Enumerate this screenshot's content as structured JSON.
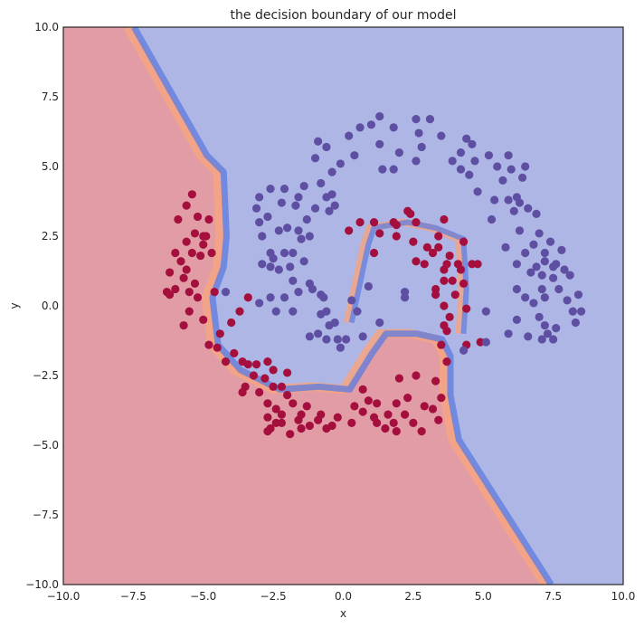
{
  "chart_data": {
    "type": "scatter",
    "title": "the decision boundary of our model",
    "xlabel": "x",
    "ylabel": "y",
    "xlim": [
      -10.0,
      10.0
    ],
    "ylim": [
      -10.0,
      10.0
    ],
    "x_ticks": [
      "−10.0",
      "−7.5",
      "−5.0",
      "−2.5",
      "0.0",
      "2.5",
      "5.0",
      "7.5",
      "10.0"
    ],
    "y_ticks": [
      "−10.0",
      "−7.5",
      "−5.0",
      "−2.5",
      "0.0",
      "2.5",
      "5.0",
      "7.5",
      "10.0"
    ],
    "x_tick_values": [
      -10,
      -7.5,
      -5,
      -2.5,
      0,
      2.5,
      5,
      7.5,
      10
    ],
    "y_tick_values": [
      -10,
      -7.5,
      -5,
      -2.5,
      0,
      2.5,
      5,
      7.5,
      10
    ],
    "grid": false,
    "legend": "none",
    "colors": {
      "region_class_0": "#e19ca6",
      "region_class_1": "#aeb6e5",
      "boundary_warm": "#f4a582",
      "boundary_cool": "#5b7be0",
      "class_0_points": "#a50f3d",
      "class_1_points": "#5e4fa2"
    },
    "background_contour": {
      "type": "filled-contour",
      "cmap": "coolwarm",
      "boundary_path": [
        [
          -7.6,
          10.0
        ],
        [
          -5.0,
          5.4
        ],
        [
          -4.4,
          4.8
        ],
        [
          -4.3,
          2.5
        ],
        [
          -4.4,
          1.4
        ],
        [
          -4.8,
          0.3
        ],
        [
          -4.6,
          -1.4
        ],
        [
          -3.8,
          -2.3
        ],
        [
          -2.4,
          -3.0
        ],
        [
          -1.0,
          -2.9
        ],
        [
          0.1,
          -3.0
        ],
        [
          0.9,
          -1.7
        ],
        [
          1.4,
          -1.0
        ],
        [
          2.5,
          -1.0
        ],
        [
          3.4,
          -1.2
        ],
        [
          3.7,
          -1.8
        ],
        [
          3.7,
          -3.2
        ],
        [
          4.0,
          -4.8
        ],
        [
          7.3,
          -10.0
        ]
      ],
      "inner_boundary_path": [
        [
          0.2,
          -0.6
        ],
        [
          0.8,
          2.2
        ],
        [
          1.0,
          2.8
        ],
        [
          2.2,
          3.0
        ],
        [
          3.2,
          2.8
        ],
        [
          4.2,
          2.4
        ],
        [
          4.3,
          0.6
        ],
        [
          4.2,
          -1.0
        ]
      ]
    },
    "series": [
      {
        "class": 0,
        "points": [
          [
            -5.4,
            4.0
          ],
          [
            -5.6,
            3.6
          ],
          [
            -5.2,
            3.2
          ],
          [
            -4.8,
            3.1
          ],
          [
            -5.9,
            3.1
          ],
          [
            -5.3,
            2.6
          ],
          [
            -4.9,
            2.5
          ],
          [
            -5.6,
            2.3
          ],
          [
            -5.0,
            2.2
          ],
          [
            -5.4,
            1.9
          ],
          [
            -6.0,
            1.9
          ],
          [
            -5.1,
            1.8
          ],
          [
            -4.7,
            1.9
          ],
          [
            -5.8,
            1.6
          ],
          [
            -6.2,
            1.2
          ],
          [
            -5.7,
            1.0
          ],
          [
            -5.3,
            0.8
          ],
          [
            -6.0,
            0.6
          ],
          [
            -5.5,
            0.5
          ],
          [
            -6.3,
            0.5
          ],
          [
            -5.2,
            0.3
          ],
          [
            -6.2,
            0.4
          ],
          [
            -5.5,
            -0.2
          ],
          [
            -5.0,
            -0.5
          ],
          [
            -5.7,
            -0.7
          ],
          [
            -3.7,
            -0.2
          ],
          [
            -4.0,
            -0.6
          ],
          [
            -4.4,
            -1.0
          ],
          [
            -4.8,
            -1.4
          ],
          [
            -4.5,
            -1.5
          ],
          [
            -3.9,
            -1.7
          ],
          [
            -4.2,
            -2.0
          ],
          [
            -3.6,
            -2.0
          ],
          [
            -3.4,
            -2.1
          ],
          [
            -3.1,
            -2.1
          ],
          [
            -2.7,
            -2.0
          ],
          [
            -3.2,
            -2.5
          ],
          [
            -2.8,
            -2.6
          ],
          [
            -2.5,
            -2.3
          ],
          [
            -2.0,
            -2.4
          ],
          [
            -3.5,
            -2.9
          ],
          [
            -2.5,
            -2.9
          ],
          [
            -2.2,
            -2.9
          ],
          [
            -3.0,
            -3.1
          ],
          [
            -2.0,
            -3.2
          ],
          [
            -2.7,
            -3.5
          ],
          [
            -3.6,
            -3.1
          ],
          [
            -1.8,
            -3.5
          ],
          [
            -1.3,
            -3.6
          ],
          [
            -2.4,
            -3.7
          ],
          [
            -2.2,
            -3.9
          ],
          [
            -1.5,
            -3.9
          ],
          [
            -0.8,
            -3.9
          ],
          [
            -2.7,
            -4.0
          ],
          [
            -2.4,
            -4.2
          ],
          [
            -1.6,
            -4.1
          ],
          [
            -0.2,
            -4.0
          ],
          [
            -0.9,
            -4.1
          ],
          [
            -0.4,
            -4.3
          ],
          [
            -2.7,
            -4.5
          ],
          [
            -2.6,
            -4.4
          ],
          [
            -1.9,
            -4.6
          ],
          [
            -1.2,
            -4.3
          ],
          [
            -0.6,
            -4.4
          ],
          [
            -1.5,
            -4.4
          ],
          [
            -2.2,
            -4.2
          ],
          [
            0.4,
            -3.6
          ],
          [
            0.9,
            -3.4
          ],
          [
            1.2,
            -3.5
          ],
          [
            0.7,
            -3.8
          ],
          [
            1.1,
            -4.0
          ],
          [
            1.9,
            -3.5
          ],
          [
            1.6,
            -3.9
          ],
          [
            2.2,
            -3.9
          ],
          [
            2.5,
            -4.2
          ],
          [
            2.9,
            -3.6
          ],
          [
            3.2,
            -3.7
          ],
          [
            3.4,
            -4.1
          ],
          [
            2.8,
            -4.5
          ],
          [
            1.8,
            -4.2
          ],
          [
            1.9,
            -4.5
          ],
          [
            1.5,
            -4.4
          ],
          [
            0.3,
            -4.2
          ],
          [
            3.3,
            -2.7
          ],
          [
            3.7,
            -2.0
          ],
          [
            2.6,
            -2.5
          ],
          [
            2.0,
            -2.6
          ],
          [
            2.3,
            -3.3
          ],
          [
            3.5,
            -3.3
          ],
          [
            1.2,
            -4.2
          ],
          [
            1.8,
            3.0
          ],
          [
            2.3,
            3.4
          ],
          [
            1.1,
            3.0
          ],
          [
            1.9,
            2.9
          ],
          [
            1.3,
            2.6
          ],
          [
            2.6,
            3.0
          ],
          [
            3.6,
            3.1
          ],
          [
            1.1,
            1.9
          ],
          [
            0.2,
            2.7
          ],
          [
            1.9,
            2.5
          ],
          [
            3.0,
            2.1
          ],
          [
            3.4,
            2.5
          ],
          [
            2.5,
            2.3
          ],
          [
            2.6,
            1.6
          ],
          [
            3.4,
            2.1
          ],
          [
            2.9,
            1.5
          ],
          [
            3.2,
            1.9
          ],
          [
            3.8,
            1.8
          ],
          [
            4.1,
            1.5
          ],
          [
            3.7,
            1.5
          ],
          [
            4.2,
            1.3
          ],
          [
            4.6,
            1.5
          ],
          [
            4.8,
            1.5
          ],
          [
            3.6,
            1.3
          ],
          [
            3.6,
            0.9
          ],
          [
            3.9,
            0.9
          ],
          [
            4.3,
            0.8
          ],
          [
            3.3,
            0.6
          ],
          [
            3.3,
            0.4
          ],
          [
            4.0,
            0.4
          ],
          [
            3.6,
            0.0
          ],
          [
            4.4,
            -0.1
          ],
          [
            3.8,
            -0.4
          ],
          [
            3.7,
            -0.9
          ],
          [
            3.6,
            -0.7
          ],
          [
            3.5,
            -1.4
          ],
          [
            4.4,
            -1.4
          ],
          [
            4.9,
            -1.3
          ],
          [
            2.4,
            3.3
          ],
          [
            -3.4,
            0.3
          ],
          [
            -5.0,
            2.5
          ],
          [
            -5.6,
            1.3
          ],
          [
            0.6,
            3.0
          ],
          [
            4.3,
            2.3
          ],
          [
            -4.6,
            0.5
          ],
          [
            0.7,
            -3.0
          ]
        ]
      },
      {
        "class": 1,
        "points": [
          [
            1.0,
            6.5
          ],
          [
            1.3,
            6.8
          ],
          [
            2.6,
            6.7
          ],
          [
            3.1,
            6.7
          ],
          [
            0.6,
            6.4
          ],
          [
            1.8,
            6.4
          ],
          [
            2.7,
            6.2
          ],
          [
            3.5,
            6.1
          ],
          [
            4.4,
            6.0
          ],
          [
            0.2,
            6.1
          ],
          [
            -0.9,
            5.9
          ],
          [
            -0.6,
            5.7
          ],
          [
            1.3,
            5.8
          ],
          [
            2.0,
            5.5
          ],
          [
            2.8,
            5.7
          ],
          [
            4.6,
            5.8
          ],
          [
            4.2,
            5.5
          ],
          [
            5.2,
            5.4
          ],
          [
            5.9,
            5.4
          ],
          [
            4.7,
            5.2
          ],
          [
            -1.0,
            5.3
          ],
          [
            0.4,
            5.4
          ],
          [
            -0.1,
            5.1
          ],
          [
            1.4,
            4.9
          ],
          [
            1.8,
            4.9
          ],
          [
            2.6,
            5.2
          ],
          [
            3.9,
            5.2
          ],
          [
            5.5,
            5.0
          ],
          [
            6.5,
            5.0
          ],
          [
            4.2,
            4.9
          ],
          [
            4.5,
            4.7
          ],
          [
            5.7,
            4.5
          ],
          [
            6.0,
            4.9
          ],
          [
            6.4,
            4.6
          ],
          [
            -0.4,
            4.8
          ],
          [
            -1.4,
            4.3
          ],
          [
            -2.6,
            4.2
          ],
          [
            -2.1,
            4.2
          ],
          [
            -1.6,
            3.9
          ],
          [
            -0.8,
            4.4
          ],
          [
            -0.4,
            4.0
          ],
          [
            -3.0,
            3.9
          ],
          [
            -3.1,
            3.5
          ],
          [
            -1.0,
            3.5
          ],
          [
            -1.7,
            3.6
          ],
          [
            -2.2,
            3.7
          ],
          [
            -2.7,
            3.2
          ],
          [
            -1.3,
            3.1
          ],
          [
            -0.3,
            3.6
          ],
          [
            -0.6,
            3.9
          ],
          [
            -0.5,
            3.4
          ],
          [
            -3.0,
            3.0
          ],
          [
            -1.6,
            2.7
          ],
          [
            -2.3,
            2.7
          ],
          [
            -1.5,
            2.4
          ],
          [
            -1.2,
            2.5
          ],
          [
            -2.6,
            1.9
          ],
          [
            -2.9,
            1.5
          ],
          [
            -2.5,
            1.7
          ],
          [
            -2.1,
            1.9
          ],
          [
            -1.8,
            1.9
          ],
          [
            -1.4,
            1.6
          ],
          [
            -2.3,
            1.3
          ],
          [
            -1.9,
            1.4
          ],
          [
            -2.6,
            1.4
          ],
          [
            -1.8,
            0.9
          ],
          [
            -1.2,
            0.8
          ],
          [
            -1.6,
            0.5
          ],
          [
            -1.1,
            0.6
          ],
          [
            -0.8,
            0.4
          ],
          [
            -0.7,
            0.3
          ],
          [
            -2.6,
            0.3
          ],
          [
            -2.1,
            0.3
          ],
          [
            -2.4,
            -0.2
          ],
          [
            -1.8,
            -0.2
          ],
          [
            -3.0,
            0.1
          ],
          [
            -0.8,
            -0.3
          ],
          [
            -0.5,
            -0.7
          ],
          [
            -0.3,
            -0.6
          ],
          [
            -0.9,
            -1.0
          ],
          [
            -1.2,
            -1.1
          ],
          [
            -0.6,
            -1.2
          ],
          [
            -0.2,
            -1.2
          ],
          [
            0.1,
            -1.2
          ],
          [
            0.7,
            -1.1
          ],
          [
            -0.1,
            -1.5
          ],
          [
            0.9,
            0.7
          ],
          [
            0.3,
            0.2
          ],
          [
            1.3,
            -0.6
          ],
          [
            2.2,
            0.5
          ],
          [
            0.5,
            -0.2
          ],
          [
            -0.6,
            -0.2
          ],
          [
            -4.2,
            0.5
          ],
          [
            -2.0,
            2.8
          ],
          [
            -2.9,
            2.5
          ],
          [
            4.8,
            4.1
          ],
          [
            5.4,
            3.8
          ],
          [
            5.9,
            3.8
          ],
          [
            6.3,
            3.7
          ],
          [
            6.6,
            3.5
          ],
          [
            6.2,
            3.9
          ],
          [
            5.3,
            3.1
          ],
          [
            6.1,
            3.4
          ],
          [
            6.9,
            3.3
          ],
          [
            7.0,
            2.6
          ],
          [
            6.3,
            2.7
          ],
          [
            7.4,
            2.3
          ],
          [
            5.8,
            2.1
          ],
          [
            6.5,
            1.9
          ],
          [
            7.2,
            1.9
          ],
          [
            7.8,
            2.0
          ],
          [
            7.2,
            1.6
          ],
          [
            7.5,
            1.4
          ],
          [
            6.2,
            1.5
          ],
          [
            6.9,
            1.4
          ],
          [
            7.9,
            1.3
          ],
          [
            6.7,
            1.2
          ],
          [
            7.1,
            1.1
          ],
          [
            7.5,
            1.0
          ],
          [
            8.1,
            1.1
          ],
          [
            7.7,
            0.6
          ],
          [
            8.4,
            0.4
          ],
          [
            8.0,
            0.2
          ],
          [
            6.5,
            0.3
          ],
          [
            7.1,
            0.6
          ],
          [
            7.2,
            0.3
          ],
          [
            6.8,
            0.1
          ],
          [
            6.2,
            0.6
          ],
          [
            8.2,
            -0.2
          ],
          [
            5.1,
            -0.2
          ],
          [
            6.2,
            -0.5
          ],
          [
            7.0,
            -0.4
          ],
          [
            7.2,
            -0.7
          ],
          [
            7.6,
            -0.8
          ],
          [
            8.3,
            -0.6
          ],
          [
            7.3,
            -1.0
          ],
          [
            6.6,
            -1.1
          ],
          [
            7.1,
            -1.2
          ],
          [
            7.5,
            -1.2
          ],
          [
            5.1,
            -1.3
          ],
          [
            4.3,
            -1.6
          ],
          [
            5.9,
            -1.0
          ],
          [
            7.6,
            1.5
          ],
          [
            6.8,
            2.2
          ],
          [
            8.5,
            -0.2
          ],
          [
            2.2,
            0.3
          ]
        ]
      }
    ]
  }
}
